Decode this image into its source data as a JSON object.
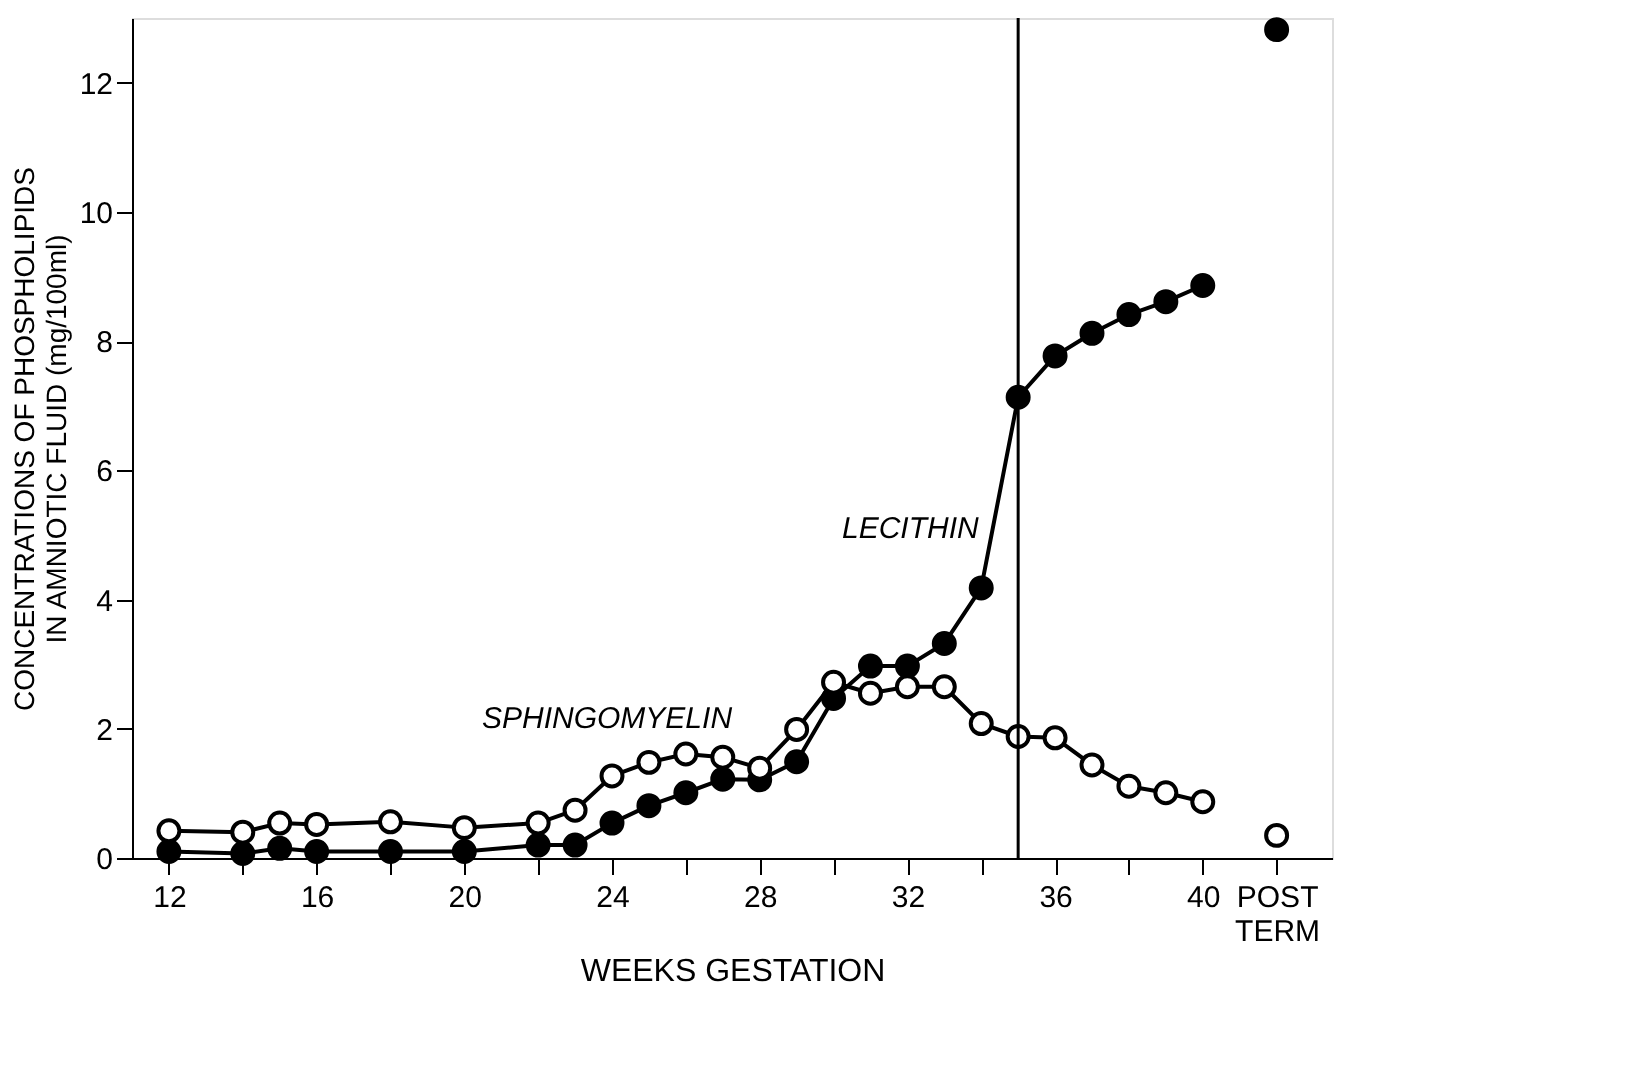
{
  "chart_data": {
    "type": "line",
    "xlabel": "WEEKS GESTATION",
    "ylabel": "CONCENTRATIONS OF PHOSPHOLIPIDS\nIN AMNIOTIC FLUID (mg/100ml)",
    "series": [
      {
        "color": "#000000",
        "x": [
          12,
          14,
          15,
          16,
          18,
          20,
          22,
          23,
          24,
          25,
          26,
          27,
          28,
          29,
          30,
          31,
          32,
          33,
          34,
          35,
          36,
          37,
          38,
          39,
          40,
          41,
          42
        ],
        "values": [
          0.1,
          0.07,
          0.15,
          0.1,
          0.1,
          0.1,
          0.2,
          0.2,
          0.54,
          0.81,
          1.01,
          1.22,
          1.21,
          1.49,
          2.47,
          2.97,
          2.97,
          3.32,
          4.18,
          7.13,
          7.77,
          8.12,
          8.41,
          8.61,
          8.86,
          null,
          12.82
        ]
      },
      {
        "color": "#000000",
        "x": [
          12,
          14,
          15,
          16,
          18,
          20,
          22,
          23,
          24,
          25,
          26,
          27,
          28,
          29,
          30,
          31,
          32,
          33,
          34,
          35,
          36,
          37,
          38,
          39,
          40,
          41,
          42
        ],
        "values": [
          0.42,
          0.4,
          0.54,
          0.52,
          0.56,
          0.47,
          0.54,
          0.74,
          1.27,
          1.48,
          1.61,
          1.56,
          1.39,
          1.99,
          2.72,
          2.55,
          2.65,
          2.65,
          2.08,
          1.88,
          1.86,
          1.44,
          1.11,
          1.01,
          0.87,
          null,
          0.35
        ]
      }
    ],
    "xlim": [
      11,
      43.5
    ],
    "xticks": [
      12,
      {
        "value": 14,
        "label": null
      },
      16,
      {
        "value": 18,
        "label": null
      },
      20,
      {
        "value": 22,
        "label": null
      },
      24,
      {
        "value": 26,
        "label": null
      },
      28,
      {
        "value": 30,
        "label": null
      },
      32,
      {
        "value": 34,
        "label": null
      },
      36,
      {
        "value": 38,
        "label": null
      },
      40,
      {
        "value": 42,
        "label": "POST TERM"
      }
    ],
    "ylim": [
      0,
      13
    ],
    "yticks": [
      0,
      2,
      4,
      6,
      8,
      10,
      12
    ],
    "ref_lines": [
      {
        "axis": "x",
        "value": 35
      }
    ],
    "annotations": [
      "LECITHIN",
      "SPHINGOMYELIN"
    ],
    "marker": "circle",
    "line_style": "solid",
    "grid": false
  }
}
